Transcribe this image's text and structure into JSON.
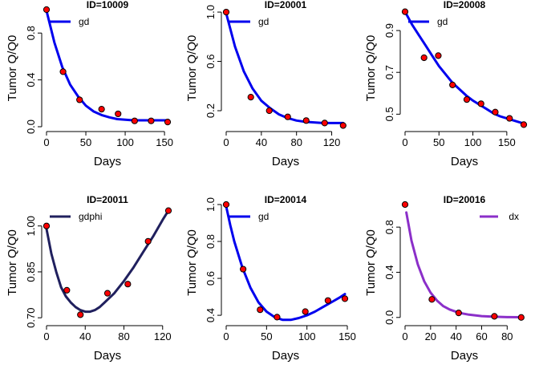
{
  "chart_data": [
    {
      "type": "line",
      "title": "ID=10009",
      "xlabel": "Days",
      "ylabel": "Tumor Q/Q0",
      "xlim": [
        0,
        155
      ],
      "ylim": [
        0,
        1.0
      ],
      "xticks": [
        0,
        50,
        100,
        150
      ],
      "xtick_labels": [
        "0",
        "50",
        "100",
        "150"
      ],
      "yticks": [
        0.0,
        0.4,
        0.8
      ],
      "ytick_labels": [
        "0.0",
        "0.4",
        "0.8"
      ],
      "legend": {
        "label": "gd",
        "color": "#0000ee",
        "placement": "top-left"
      },
      "series": [
        {
          "kind": "points",
          "color": "#ff0000",
          "x": [
            0,
            21,
            42,
            70,
            91,
            112,
            133,
            154
          ],
          "y": [
            1.0,
            0.47,
            0.23,
            0.15,
            0.11,
            0.05,
            0.05,
            0.04
          ]
        },
        {
          "kind": "line",
          "name": "gd",
          "color": "#0000ee",
          "x": [
            0,
            10,
            20,
            30,
            40,
            50,
            60,
            70,
            80,
            90,
            100,
            110,
            120,
            130,
            140,
            150,
            155
          ],
          "y": [
            0.99,
            0.72,
            0.51,
            0.36,
            0.26,
            0.18,
            0.13,
            0.1,
            0.08,
            0.065,
            0.06,
            0.055,
            0.055,
            0.055,
            0.055,
            0.055,
            0.055
          ]
        }
      ]
    },
    {
      "type": "line",
      "title": "ID=20001",
      "xlabel": "Days",
      "ylabel": "Tumor Q/Q0",
      "xlim": [
        0,
        135
      ],
      "ylim": [
        0.07,
        1.02
      ],
      "xticks": [
        0,
        40,
        80,
        120
      ],
      "xtick_labels": [
        "0",
        "40",
        "80",
        "120"
      ],
      "yticks": [
        0.2,
        0.6,
        1.0
      ],
      "ytick_labels": [
        "0.2",
        "0.6",
        "1.0"
      ],
      "legend": {
        "label": "gd",
        "color": "#0000ee",
        "placement": "top-left"
      },
      "series": [
        {
          "kind": "points",
          "color": "#ff0000",
          "x": [
            0,
            28,
            49,
            70,
            91,
            112,
            133
          ],
          "y": [
            1.0,
            0.31,
            0.2,
            0.15,
            0.12,
            0.1,
            0.08
          ]
        },
        {
          "kind": "line",
          "name": "gd",
          "color": "#0000ee",
          "x": [
            0,
            10,
            20,
            30,
            40,
            50,
            60,
            70,
            80,
            90,
            100,
            110,
            120,
            133
          ],
          "y": [
            0.99,
            0.72,
            0.52,
            0.38,
            0.28,
            0.22,
            0.17,
            0.14,
            0.12,
            0.11,
            0.105,
            0.1,
            0.1,
            0.1
          ]
        }
      ]
    },
    {
      "type": "line",
      "title": "ID=20008",
      "xlabel": "Days",
      "ylabel": "Tumor Q/Q0",
      "xlim": [
        0,
        175
      ],
      "ylim": [
        0.44,
        1.0
      ],
      "xticks": [
        0,
        50,
        100,
        150
      ],
      "xtick_labels": [
        "0",
        "50",
        "100",
        "150"
      ],
      "yticks": [
        0.5,
        0.7,
        0.9
      ],
      "ytick_labels": [
        "0.5",
        "0.7",
        "0.9"
      ],
      "legend": {
        "label": "gd",
        "color": "#0000ee",
        "placement": "top-left"
      },
      "series": [
        {
          "kind": "points",
          "color": "#ff0000",
          "x": [
            0,
            28,
            49,
            70,
            91,
            112,
            133,
            154,
            175
          ],
          "y": [
            0.99,
            0.77,
            0.78,
            0.64,
            0.57,
            0.55,
            0.51,
            0.48,
            0.45
          ]
        },
        {
          "kind": "line",
          "name": "gd",
          "color": "#0000ee",
          "x": [
            0,
            10,
            20,
            30,
            40,
            50,
            60,
            70,
            80,
            90,
            100,
            110,
            120,
            130,
            140,
            150,
            160,
            175
          ],
          "y": [
            0.99,
            0.93,
            0.88,
            0.83,
            0.78,
            0.73,
            0.69,
            0.65,
            0.62,
            0.59,
            0.565,
            0.545,
            0.525,
            0.505,
            0.49,
            0.48,
            0.47,
            0.455
          ]
        }
      ]
    },
    {
      "type": "line",
      "title": "ID=20011",
      "xlabel": "Days",
      "ylabel": "Tumor Q/Q0",
      "xlim": [
        0,
        126
      ],
      "ylim": [
        0.69,
        1.07
      ],
      "xticks": [
        0,
        40,
        80,
        120
      ],
      "xtick_labels": [
        "0",
        "40",
        "80",
        "120"
      ],
      "yticks": [
        0.7,
        0.85,
        1.0
      ],
      "ytick_labels": [
        "0.70",
        "0.85",
        "1.00"
      ],
      "legend": {
        "label": "gdphi",
        "color": "#20205e",
        "placement": "top-left"
      },
      "series": [
        {
          "kind": "points",
          "color": "#ff0000",
          "x": [
            0,
            21,
            35,
            63,
            84,
            105,
            126
          ],
          "y": [
            1.0,
            0.79,
            0.71,
            0.78,
            0.81,
            0.95,
            1.05
          ]
        },
        {
          "kind": "line",
          "name": "gdphi",
          "color": "#20205e",
          "x": [
            0,
            5,
            10,
            15,
            20,
            25,
            30,
            35,
            40,
            45,
            50,
            55,
            60,
            70,
            80,
            90,
            100,
            110,
            120,
            126
          ],
          "y": [
            0.99,
            0.91,
            0.85,
            0.8,
            0.77,
            0.75,
            0.735,
            0.725,
            0.72,
            0.72,
            0.725,
            0.735,
            0.75,
            0.78,
            0.82,
            0.865,
            0.915,
            0.965,
            1.02,
            1.05
          ]
        }
      ]
    },
    {
      "type": "line",
      "title": "ID=20014",
      "xlabel": "Days",
      "ylabel": "Tumor Q/Q0",
      "xlim": [
        0,
        147
      ],
      "ylim": [
        0.37,
        1.0
      ],
      "xticks": [
        0,
        50,
        100,
        150
      ],
      "xtick_labels": [
        "0",
        "50",
        "100",
        "150"
      ],
      "yticks": [
        0.4,
        0.6,
        0.8,
        1.0
      ],
      "ytick_labels": [
        "0.4",
        "0.6",
        "0.8",
        "1.0"
      ],
      "legend": {
        "label": "gd",
        "color": "#0000ee",
        "placement": "top-left"
      },
      "series": [
        {
          "kind": "points",
          "color": "#ff0000",
          "x": [
            0,
            21,
            42,
            63,
            98,
            126,
            147
          ],
          "y": [
            1.0,
            0.65,
            0.43,
            0.39,
            0.42,
            0.48,
            0.49
          ]
        },
        {
          "kind": "line",
          "name": "gd",
          "color": "#0000ee",
          "x": [
            0,
            5,
            10,
            20,
            30,
            40,
            50,
            60,
            70,
            80,
            90,
            100,
            110,
            120,
            130,
            140,
            147
          ],
          "y": [
            0.99,
            0.89,
            0.8,
            0.66,
            0.55,
            0.47,
            0.42,
            0.39,
            0.375,
            0.375,
            0.385,
            0.4,
            0.42,
            0.445,
            0.47,
            0.495,
            0.515
          ]
        }
      ]
    },
    {
      "type": "line",
      "title": "ID=20016",
      "xlabel": "Days",
      "ylabel": "Tumor Q/Q0",
      "xlim": [
        0,
        93
      ],
      "ylim": [
        -0.03,
        1.0
      ],
      "xticks": [
        0,
        20,
        40,
        60,
        80
      ],
      "xtick_labels": [
        "0",
        "20",
        "40",
        "60",
        "80"
      ],
      "yticks": [
        0.0,
        0.4,
        0.8
      ],
      "ytick_labels": [
        "0.0",
        "0.4",
        "0.8"
      ],
      "legend": {
        "label": "dx",
        "color": "#8b2fc9",
        "placement": "top-right"
      },
      "series": [
        {
          "kind": "points",
          "color": "#ff0000",
          "x": [
            0,
            21,
            42,
            70,
            91
          ],
          "y": [
            1.0,
            0.16,
            0.04,
            0.01,
            0.0
          ]
        },
        {
          "kind": "line",
          "name": "dx",
          "color": "#8b2fc9",
          "x": [
            1,
            5,
            10,
            15,
            20,
            25,
            30,
            35,
            40,
            45,
            50,
            60,
            70,
            80,
            91
          ],
          "y": [
            0.93,
            0.68,
            0.47,
            0.32,
            0.22,
            0.15,
            0.1,
            0.07,
            0.05,
            0.035,
            0.025,
            0.012,
            0.006,
            0.003,
            0.002
          ]
        }
      ]
    }
  ]
}
